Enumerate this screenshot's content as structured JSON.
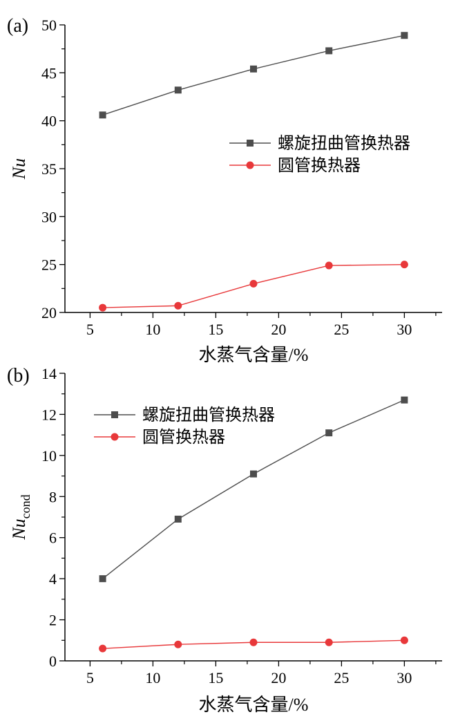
{
  "chart_data": [
    {
      "type": "line",
      "panel_label": "(a)",
      "xlabel": "水蒸气含量/%",
      "ylabel": "Nu",
      "ylabel_sub": "",
      "xlim": [
        3,
        33
      ],
      "ylim": [
        20,
        50
      ],
      "xticks": [
        5,
        10,
        15,
        20,
        25,
        30
      ],
      "yticks": [
        20,
        25,
        30,
        35,
        40,
        45,
        50
      ],
      "legend_position": "center-right",
      "x": [
        6,
        12,
        18,
        24,
        30
      ],
      "series": [
        {
          "name": "螺旋扭曲管换热器",
          "marker": "square",
          "color": "#4d4d4d",
          "values": [
            40.6,
            43.2,
            45.4,
            47.3,
            48.9
          ]
        },
        {
          "name": "圆管换热器",
          "marker": "circle",
          "color": "#e8383a",
          "values": [
            20.5,
            20.7,
            23.0,
            24.9,
            25.0
          ]
        }
      ]
    },
    {
      "type": "line",
      "panel_label": "(b)",
      "xlabel": "水蒸气含量/%",
      "ylabel": "Nu",
      "ylabel_sub": "cond",
      "xlim": [
        3,
        33
      ],
      "ylim": [
        0,
        14
      ],
      "xticks": [
        5,
        10,
        15,
        20,
        25,
        30
      ],
      "yticks": [
        0,
        2,
        4,
        6,
        8,
        10,
        12,
        14
      ],
      "legend_position": "top-left",
      "x": [
        6,
        12,
        18,
        24,
        30
      ],
      "series": [
        {
          "name": "螺旋扭曲管换热器",
          "marker": "square",
          "color": "#4d4d4d",
          "values": [
            4.0,
            6.9,
            9.1,
            11.1,
            12.7
          ]
        },
        {
          "name": "圆管换热器",
          "marker": "circle",
          "color": "#e8383a",
          "values": [
            0.6,
            0.8,
            0.9,
            0.9,
            1.0
          ]
        }
      ]
    }
  ]
}
